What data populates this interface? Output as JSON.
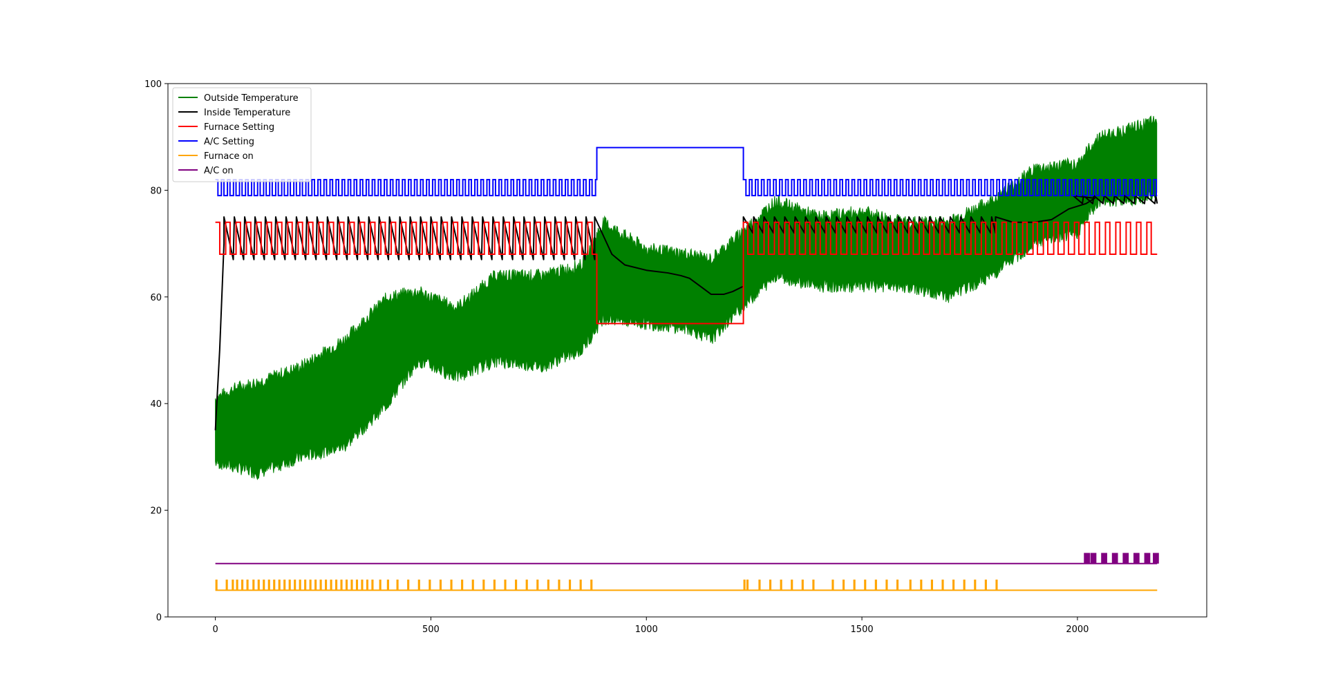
{
  "chart_data": {
    "type": "line",
    "title": "",
    "xlabel": "",
    "ylabel": "",
    "xlim": [
      -110,
      2300
    ],
    "ylim": [
      0,
      100
    ],
    "x_ticks": [
      0,
      500,
      1000,
      1500,
      2000
    ],
    "y_ticks": [
      0,
      20,
      40,
      60,
      80,
      100
    ],
    "x_tick_labels": [
      "0",
      "500",
      "1000",
      "1500",
      "2000"
    ],
    "y_tick_labels": [
      "0",
      "20",
      "40",
      "60",
      "80",
      "100"
    ],
    "grid": false,
    "legend_position": "top-left",
    "series": [
      {
        "name": "Outside Temperature",
        "color": "#008000",
        "style": "band",
        "x": [
          0,
          50,
          100,
          200,
          300,
          400,
          470,
          560,
          650,
          760,
          850,
          900,
          1000,
          1100,
          1150,
          1220,
          1300,
          1400,
          1500,
          1600,
          1700,
          1800,
          1900,
          2000,
          2050,
          2100,
          2185
        ],
        "low": [
          29,
          28,
          27,
          30,
          32,
          40,
          48,
          45,
          48,
          47,
          50,
          56,
          55,
          54,
          52,
          58,
          64,
          62,
          62,
          62,
          60,
          64,
          70,
          72,
          78,
          78,
          79
        ],
        "high": [
          41,
          43,
          44,
          47,
          52,
          60,
          61,
          58,
          64,
          64,
          66,
          74,
          69,
          68,
          67,
          72,
          78,
          75,
          76,
          74,
          74,
          78,
          84,
          85,
          90,
          91,
          93
        ]
      },
      {
        "name": "Inside Temperature",
        "color": "#000000",
        "style": "line",
        "warmup_x": [
          0,
          10,
          20
        ],
        "warmup_y": [
          35,
          50,
          70
        ],
        "segments": [
          {
            "x_start": 20,
            "x_end": 880,
            "period": 24,
            "min": 67,
            "max": 75
          },
          {
            "x_start": 1225,
            "x_end": 1810,
            "period": 24,
            "min": 72,
            "max": 75
          },
          {
            "x_start": 1990,
            "x_end": 2185,
            "period": 24,
            "min": 77.5,
            "max": 79
          }
        ],
        "x": [
          880,
          920,
          950,
          1000,
          1050,
          1080,
          1100,
          1150,
          1180,
          1200,
          1225
        ],
        "y": [
          75,
          68,
          66,
          65,
          64.5,
          64,
          63.5,
          60.5,
          60.5,
          61,
          62
        ],
        "x2": [
          1810,
          1850,
          1900,
          1940,
          1980,
          2000,
          2020,
          2040
        ],
        "y2": [
          75,
          74,
          74,
          74.5,
          76.5,
          77,
          77.5,
          78.5
        ]
      },
      {
        "name": "Furnace Setting",
        "color": "#ff0000",
        "style": "square",
        "segments": [
          {
            "x_start": 0,
            "x_end": 885,
            "period": 24,
            "low": 68,
            "high": 74
          },
          {
            "x_start": 885,
            "x_end": 1225,
            "period": 0,
            "low": 55,
            "high": 55
          },
          {
            "x_start": 1225,
            "x_end": 2185,
            "period": 24,
            "low": 68,
            "high": 74
          }
        ]
      },
      {
        "name": "A/C Setting",
        "color": "#0000ff",
        "style": "square",
        "segments": [
          {
            "x_start": 0,
            "x_end": 885,
            "period": 14,
            "low": 79,
            "high": 82
          },
          {
            "x_start": 885,
            "x_end": 1225,
            "period": 0,
            "low": 88,
            "high": 88
          },
          {
            "x_start": 1225,
            "x_end": 2185,
            "period": 14,
            "low": 79,
            "high": 82
          }
        ]
      },
      {
        "name": "Furnace on",
        "color": "#ffa500",
        "style": "pulses",
        "base": 5,
        "on": 7,
        "pulse_x": [
          0,
          24,
          38,
          48,
          60,
          72,
          86,
          98,
          110,
          122,
          134,
          146,
          158,
          170,
          182,
          194,
          206,
          218,
          230,
          242,
          254,
          266,
          278,
          290,
          302,
          314,
          326,
          338,
          350,
          362,
          380,
          398,
          420,
          445,
          470,
          495,
          520,
          545,
          570,
          595,
          620,
          645,
          670,
          695,
          720,
          745,
          770,
          795,
          820,
          845,
          870,
          1225,
          1232,
          1260,
          1285,
          1310,
          1335,
          1360,
          1385,
          1430,
          1455,
          1480,
          1505,
          1530,
          1555,
          1580,
          1610,
          1635,
          1660,
          1685,
          1710,
          1735,
          1760,
          1785,
          1810
        ],
        "pulse_width": 5
      },
      {
        "name": "A/C on",
        "color": "#800080",
        "style": "pulses",
        "base": 10,
        "on": 12,
        "pulse_x": [
          2015,
          2030,
          2055,
          2080,
          2105,
          2130,
          2155,
          2175
        ],
        "pulse_width": 14
      }
    ]
  }
}
